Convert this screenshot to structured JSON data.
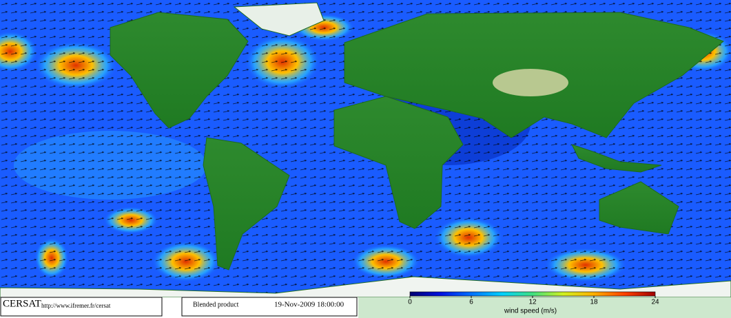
{
  "footer": {
    "logo": "CERSAT",
    "url": "http://www.ifremer.fr/cersat",
    "product": "Blended product",
    "date": "19-Nov-2009 18:00:00"
  },
  "colorbar": {
    "label": "wind speed (m/s)",
    "range": [
      0,
      24
    ],
    "ticks": [
      0,
      6,
      12,
      18,
      24
    ],
    "colors": [
      "#000070",
      "#0010e0",
      "#0070ff",
      "#00d0ff",
      "#40e080",
      "#d0f020",
      "#ffb000",
      "#ff4000",
      "#a00000"
    ]
  }
}
